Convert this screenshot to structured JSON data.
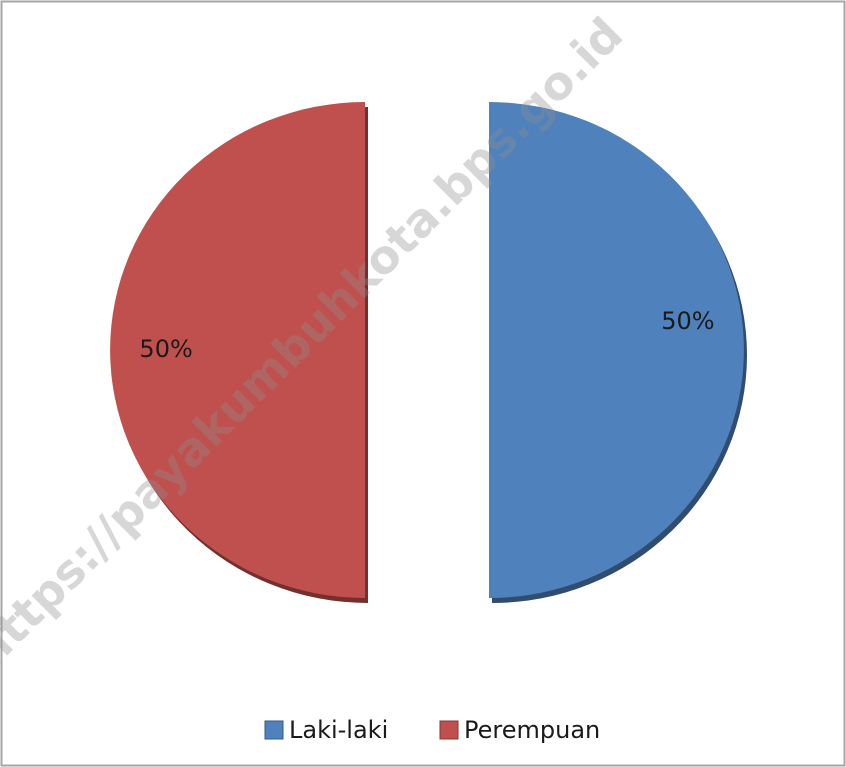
{
  "chart_data": {
    "type": "pie",
    "categories": [
      "Laki-laki",
      "Perempuan"
    ],
    "values": [
      50,
      50
    ],
    "value_labels": [
      "50%",
      "50%"
    ],
    "colors": [
      "#4f81bd",
      "#c0504d"
    ],
    "exploded": true,
    "legend": "bottom",
    "watermark": "https://payakumbuhkota.bps.go.id"
  }
}
